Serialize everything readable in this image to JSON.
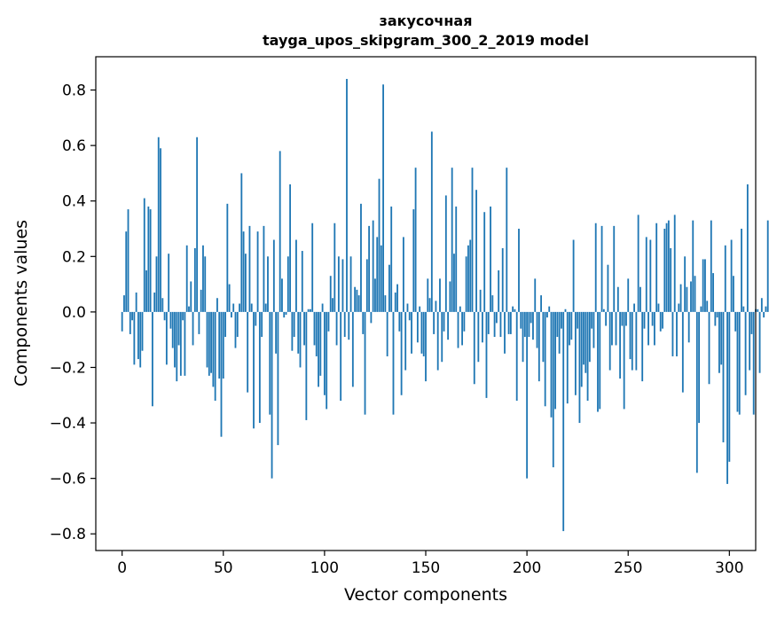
{
  "chart_data": {
    "type": "bar",
    "title": "закусочная",
    "subtitle": "tayga_upos_skipgram_300_2_2019 model",
    "xlabel": "Vector components",
    "ylabel": "Components values",
    "xlim": [
      -13,
      313
    ],
    "ylim": [
      -0.86,
      0.92
    ],
    "xticks": [
      0,
      50,
      100,
      150,
      200,
      250,
      300
    ],
    "yticks": [
      -0.8,
      -0.6,
      -0.4,
      -0.2,
      0.0,
      0.2,
      0.4,
      0.6,
      0.8
    ],
    "xtick_labels": [
      "0",
      "50",
      "100",
      "150",
      "200",
      "250",
      "300"
    ],
    "ytick_labels": [
      "−0.8",
      "−0.6",
      "−0.4",
      "−0.2",
      "0.0",
      "0.2",
      "0.4",
      "0.6",
      "0.8"
    ],
    "grid": false,
    "bar_color": "#1f77b4",
    "values": [
      -0.07,
      0.06,
      0.29,
      0.37,
      -0.08,
      -0.03,
      -0.19,
      0.07,
      -0.17,
      -0.2,
      -0.14,
      0.41,
      0.15,
      0.38,
      0.37,
      -0.34,
      0.07,
      0.2,
      0.63,
      0.59,
      0.05,
      -0.03,
      -0.19,
      0.21,
      -0.06,
      -0.13,
      -0.2,
      -0.25,
      -0.12,
      -0.23,
      -0.03,
      -0.23,
      0.24,
      0.02,
      0.11,
      -0.12,
      0.23,
      0.63,
      -0.08,
      0.08,
      0.24,
      0.2,
      -0.2,
      -0.23,
      -0.22,
      -0.27,
      -0.32,
      0.05,
      -0.24,
      -0.45,
      -0.24,
      -0.09,
      0.39,
      0.1,
      -0.02,
      0.03,
      -0.13,
      -0.09,
      0.03,
      0.5,
      0.29,
      0.21,
      -0.29,
      0.31,
      0.03,
      -0.42,
      -0.05,
      0.29,
      -0.4,
      -0.09,
      0.31,
      0.03,
      0.2,
      -0.37,
      -0.6,
      0.26,
      -0.15,
      -0.48,
      0.58,
      0.12,
      -0.02,
      -0.01,
      0.2,
      0.46,
      -0.14,
      -0.09,
      0.26,
      -0.15,
      -0.2,
      0.22,
      -0.12,
      -0.39,
      0.01,
      0.01,
      0.32,
      -0.12,
      -0.16,
      -0.27,
      -0.23,
      0.03,
      -0.3,
      -0.35,
      -0.07,
      0.13,
      0.05,
      0.32,
      -0.12,
      0.2,
      -0.32,
      0.19,
      -0.09,
      0.84,
      -0.1,
      0.2,
      -0.27,
      0.09,
      0.08,
      0.06,
      0.39,
      -0.08,
      -0.37,
      0.19,
      0.31,
      -0.04,
      0.33,
      0.12,
      0.27,
      0.48,
      0.24,
      0.82,
      0.06,
      -0.16,
      0.17,
      0.38,
      -0.37,
      0.07,
      0.1,
      -0.07,
      -0.3,
      0.27,
      -0.21,
      0.03,
      -0.03,
      -0.15,
      0.37,
      0.52,
      -0.11,
      0.02,
      -0.15,
      -0.16,
      -0.25,
      0.12,
      0.05,
      0.65,
      -0.08,
      0.04,
      -0.21,
      0.12,
      -0.18,
      -0.07,
      0.42,
      -0.1,
      0.11,
      0.52,
      0.21,
      0.38,
      -0.13,
      0.02,
      -0.12,
      -0.07,
      0.2,
      0.24,
      0.26,
      0.52,
      -0.26,
      0.44,
      -0.18,
      0.08,
      -0.11,
      0.36,
      -0.31,
      -0.08,
      0.38,
      0.06,
      -0.09,
      -0.04,
      0.15,
      -0.09,
      0.23,
      -0.15,
      0.52,
      -0.08,
      -0.08,
      0.02,
      0.01,
      -0.32,
      0.3,
      -0.06,
      -0.18,
      -0.09,
      -0.6,
      -0.09,
      -0.04,
      -0.1,
      0.12,
      -0.13,
      -0.25,
      0.06,
      -0.18,
      -0.34,
      -0.02,
      0.02,
      -0.38,
      -0.56,
      -0.35,
      -0.09,
      -0.15,
      -0.06,
      -0.79,
      0.01,
      -0.33,
      -0.12,
      -0.1,
      0.26,
      -0.3,
      -0.06,
      -0.4,
      -0.27,
      -0.19,
      -0.22,
      -0.32,
      -0.18,
      -0.06,
      -0.13,
      0.32,
      -0.36,
      -0.35,
      0.31,
      0.01,
      -0.05,
      0.17,
      -0.21,
      -0.12,
      0.31,
      -0.12,
      0.09,
      -0.24,
      -0.05,
      -0.35,
      -0.05,
      0.12,
      -0.17,
      -0.21,
      0.03,
      -0.21,
      0.35,
      0.09,
      -0.25,
      -0.06,
      0.27,
      -0.12,
      0.26,
      -0.05,
      -0.12,
      0.32,
      0.03,
      -0.07,
      -0.06,
      0.3,
      0.32,
      0.33,
      0.23,
      -0.16,
      0.35,
      -0.16,
      0.03,
      0.1,
      -0.29,
      0.2,
      0.09,
      -0.11,
      0.11,
      0.33,
      0.13,
      -0.58,
      -0.4,
      0.02,
      0.19,
      0.19,
      0.04,
      -0.26,
      0.33,
      0.14,
      -0.05,
      -0.02,
      -0.22,
      -0.19,
      -0.47,
      0.24,
      -0.62,
      -0.54,
      0.26,
      0.13,
      -0.07,
      -0.36,
      -0.37,
      0.3,
      0.02,
      -0.3,
      0.46,
      -0.21,
      -0.08,
      -0.37,
      0.01,
      0.01,
      -0.22,
      0.05,
      -0.02,
      0.02,
      0.33,
      -0.31
    ]
  }
}
